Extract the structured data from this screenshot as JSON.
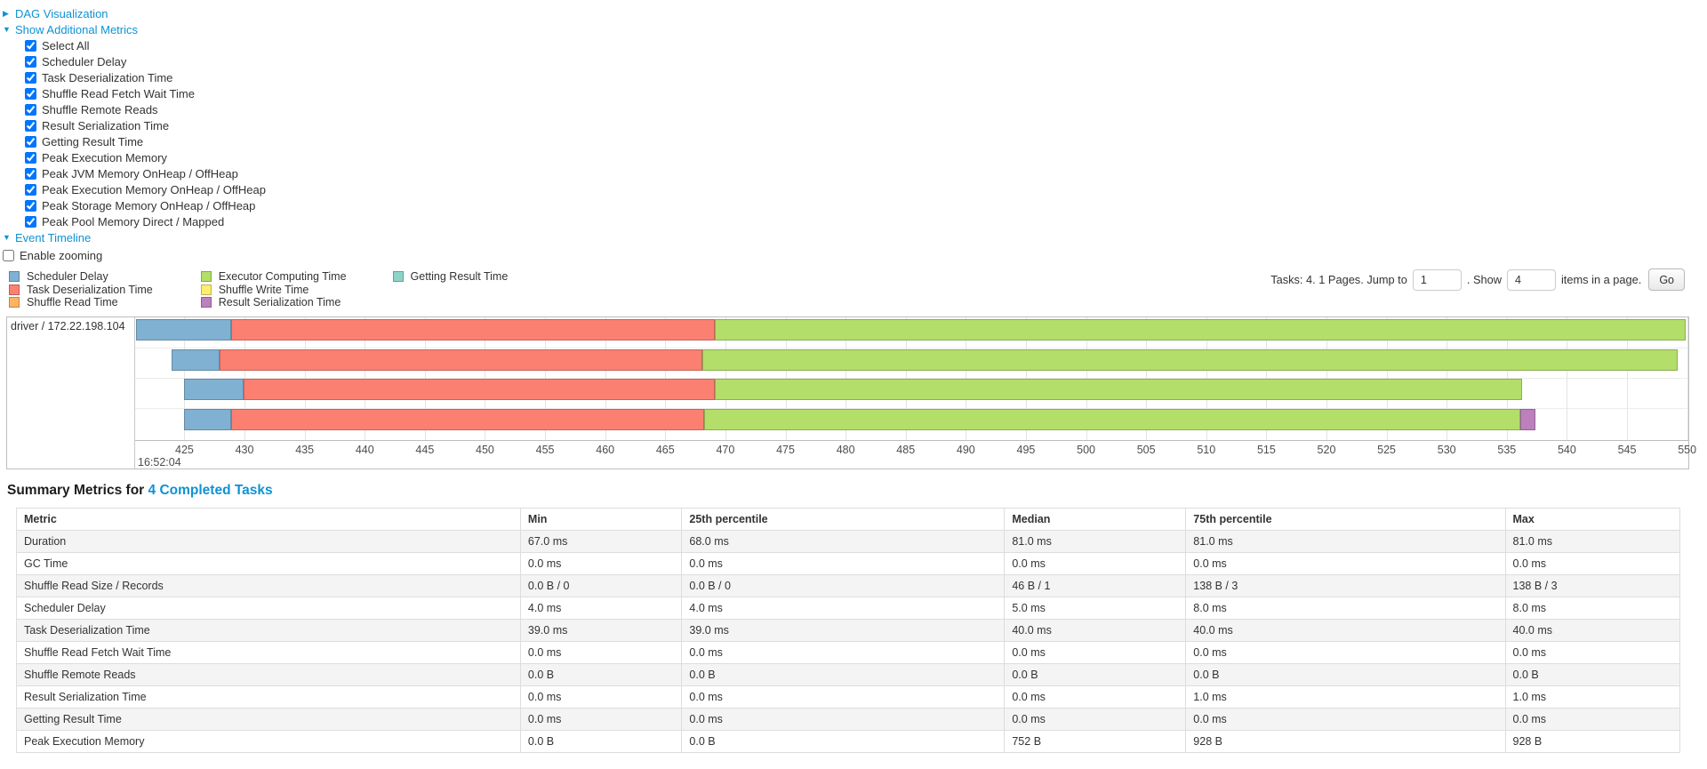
{
  "icons": {
    "caret_right": "▶",
    "caret_down": "▼"
  },
  "toggles": {
    "dag_visualization": "DAG Visualization",
    "show_additional_metrics": "Show Additional Metrics",
    "event_timeline": "Event Timeline"
  },
  "metrics_panel": {
    "items": [
      "Select All",
      "Scheduler Delay",
      "Task Deserialization Time",
      "Shuffle Read Fetch Wait Time",
      "Shuffle Remote Reads",
      "Result Serialization Time",
      "Getting Result Time",
      "Peak Execution Memory",
      "Peak JVM Memory OnHeap / OffHeap",
      "Peak Execution Memory OnHeap / OffHeap",
      "Peak Storage Memory OnHeap / OffHeap",
      "Peak Pool Memory Direct / Mapped"
    ],
    "all_checked": true
  },
  "enable_zooming": {
    "label": "Enable zooming",
    "checked": false
  },
  "legend": {
    "columns": [
      [
        {
          "label": "Scheduler Delay",
          "color": "#80B1D3"
        },
        {
          "label": "Task Deserialization Time",
          "color": "#FB8072"
        },
        {
          "label": "Shuffle Read Time",
          "color": "#FDB462"
        }
      ],
      [
        {
          "label": "Executor Computing Time",
          "color": "#B3DE69"
        },
        {
          "label": "Shuffle Write Time",
          "color": "#FFED6F"
        },
        {
          "label": "Result Serialization Time",
          "color": "#BC80BD"
        }
      ],
      [
        {
          "label": "Getting Result Time",
          "color": "#8DD3C7"
        }
      ]
    ]
  },
  "pagination": {
    "prefix": "Tasks: 4. 1 Pages. Jump to",
    "jump_value": "1",
    "mid": ". Show",
    "show_value": "4",
    "suffix": "items in a page.",
    "go_label": "Go"
  },
  "chart_data": {
    "type": "timeline",
    "group_label": "driver / 172.22.198.104",
    "axis": {
      "min": 420.9,
      "max": 550.1,
      "unit": "ms within second 16:52:04",
      "major_label": "16:52:04",
      "ticks": [
        425,
        430,
        435,
        440,
        445,
        450,
        455,
        460,
        465,
        470,
        475,
        480,
        485,
        490,
        495,
        500,
        505,
        510,
        515,
        520,
        525,
        530,
        535,
        540,
        545,
        550
      ]
    },
    "colors": {
      "Scheduler Delay": "#80B1D3",
      "Task Deserialization Time": "#FB8072",
      "Shuffle Read Time": "#FDB462",
      "Executor Computing Time": "#B3DE69",
      "Shuffle Write Time": "#FFED6F",
      "Result Serialization Time": "#BC80BD",
      "Getting Result Time": "#8DD3C7"
    },
    "tasks": [
      {
        "segments": [
          {
            "metric": "Scheduler Delay",
            "start": 421.0,
            "end": 428.9
          },
          {
            "metric": "Task Deserialization Time",
            "start": 428.9,
            "end": 469.1
          },
          {
            "metric": "Executor Computing Time",
            "start": 469.1,
            "end": 549.9
          }
        ]
      },
      {
        "segments": [
          {
            "metric": "Scheduler Delay",
            "start": 423.9,
            "end": 427.9
          },
          {
            "metric": "Task Deserialization Time",
            "start": 427.9,
            "end": 468.1
          },
          {
            "metric": "Executor Computing Time",
            "start": 468.1,
            "end": 549.2
          }
        ]
      },
      {
        "segments": [
          {
            "metric": "Scheduler Delay",
            "start": 425.0,
            "end": 429.9
          },
          {
            "metric": "Task Deserialization Time",
            "start": 429.9,
            "end": 469.1
          },
          {
            "metric": "Executor Computing Time",
            "start": 469.1,
            "end": 536.3
          }
        ]
      },
      {
        "segments": [
          {
            "metric": "Scheduler Delay",
            "start": 425.0,
            "end": 428.9
          },
          {
            "metric": "Task Deserialization Time",
            "start": 428.9,
            "end": 468.2
          },
          {
            "metric": "Executor Computing Time",
            "start": 468.2,
            "end": 536.1
          },
          {
            "metric": "Result Serialization Time",
            "start": 536.1,
            "end": 537.4
          }
        ]
      }
    ]
  },
  "summary": {
    "title_prefix": "Summary Metrics for",
    "title_link": "4 Completed Tasks"
  },
  "summary_table": {
    "columns": [
      "Metric",
      "Min",
      "25th percentile",
      "Median",
      "75th percentile",
      "Max"
    ],
    "rows": [
      [
        "Duration",
        "67.0 ms",
        "68.0 ms",
        "81.0 ms",
        "81.0 ms",
        "81.0 ms"
      ],
      [
        "GC Time",
        "0.0 ms",
        "0.0 ms",
        "0.0 ms",
        "0.0 ms",
        "0.0 ms"
      ],
      [
        "Shuffle Read Size / Records",
        "0.0 B / 0",
        "0.0 B / 0",
        "46 B / 1",
        "138 B / 3",
        "138 B / 3"
      ],
      [
        "Scheduler Delay",
        "4.0 ms",
        "4.0 ms",
        "5.0 ms",
        "8.0 ms",
        "8.0 ms"
      ],
      [
        "Task Deserialization Time",
        "39.0 ms",
        "39.0 ms",
        "40.0 ms",
        "40.0 ms",
        "40.0 ms"
      ],
      [
        "Shuffle Read Fetch Wait Time",
        "0.0 ms",
        "0.0 ms",
        "0.0 ms",
        "0.0 ms",
        "0.0 ms"
      ],
      [
        "Shuffle Remote Reads",
        "0.0 B",
        "0.0 B",
        "0.0 B",
        "0.0 B",
        "0.0 B"
      ],
      [
        "Result Serialization Time",
        "0.0 ms",
        "0.0 ms",
        "0.0 ms",
        "1.0 ms",
        "1.0 ms"
      ],
      [
        "Getting Result Time",
        "0.0 ms",
        "0.0 ms",
        "0.0 ms",
        "0.0 ms",
        "0.0 ms"
      ],
      [
        "Peak Execution Memory",
        "0.0 B",
        "0.0 B",
        "752 B",
        "928 B",
        "928 B"
      ]
    ]
  }
}
